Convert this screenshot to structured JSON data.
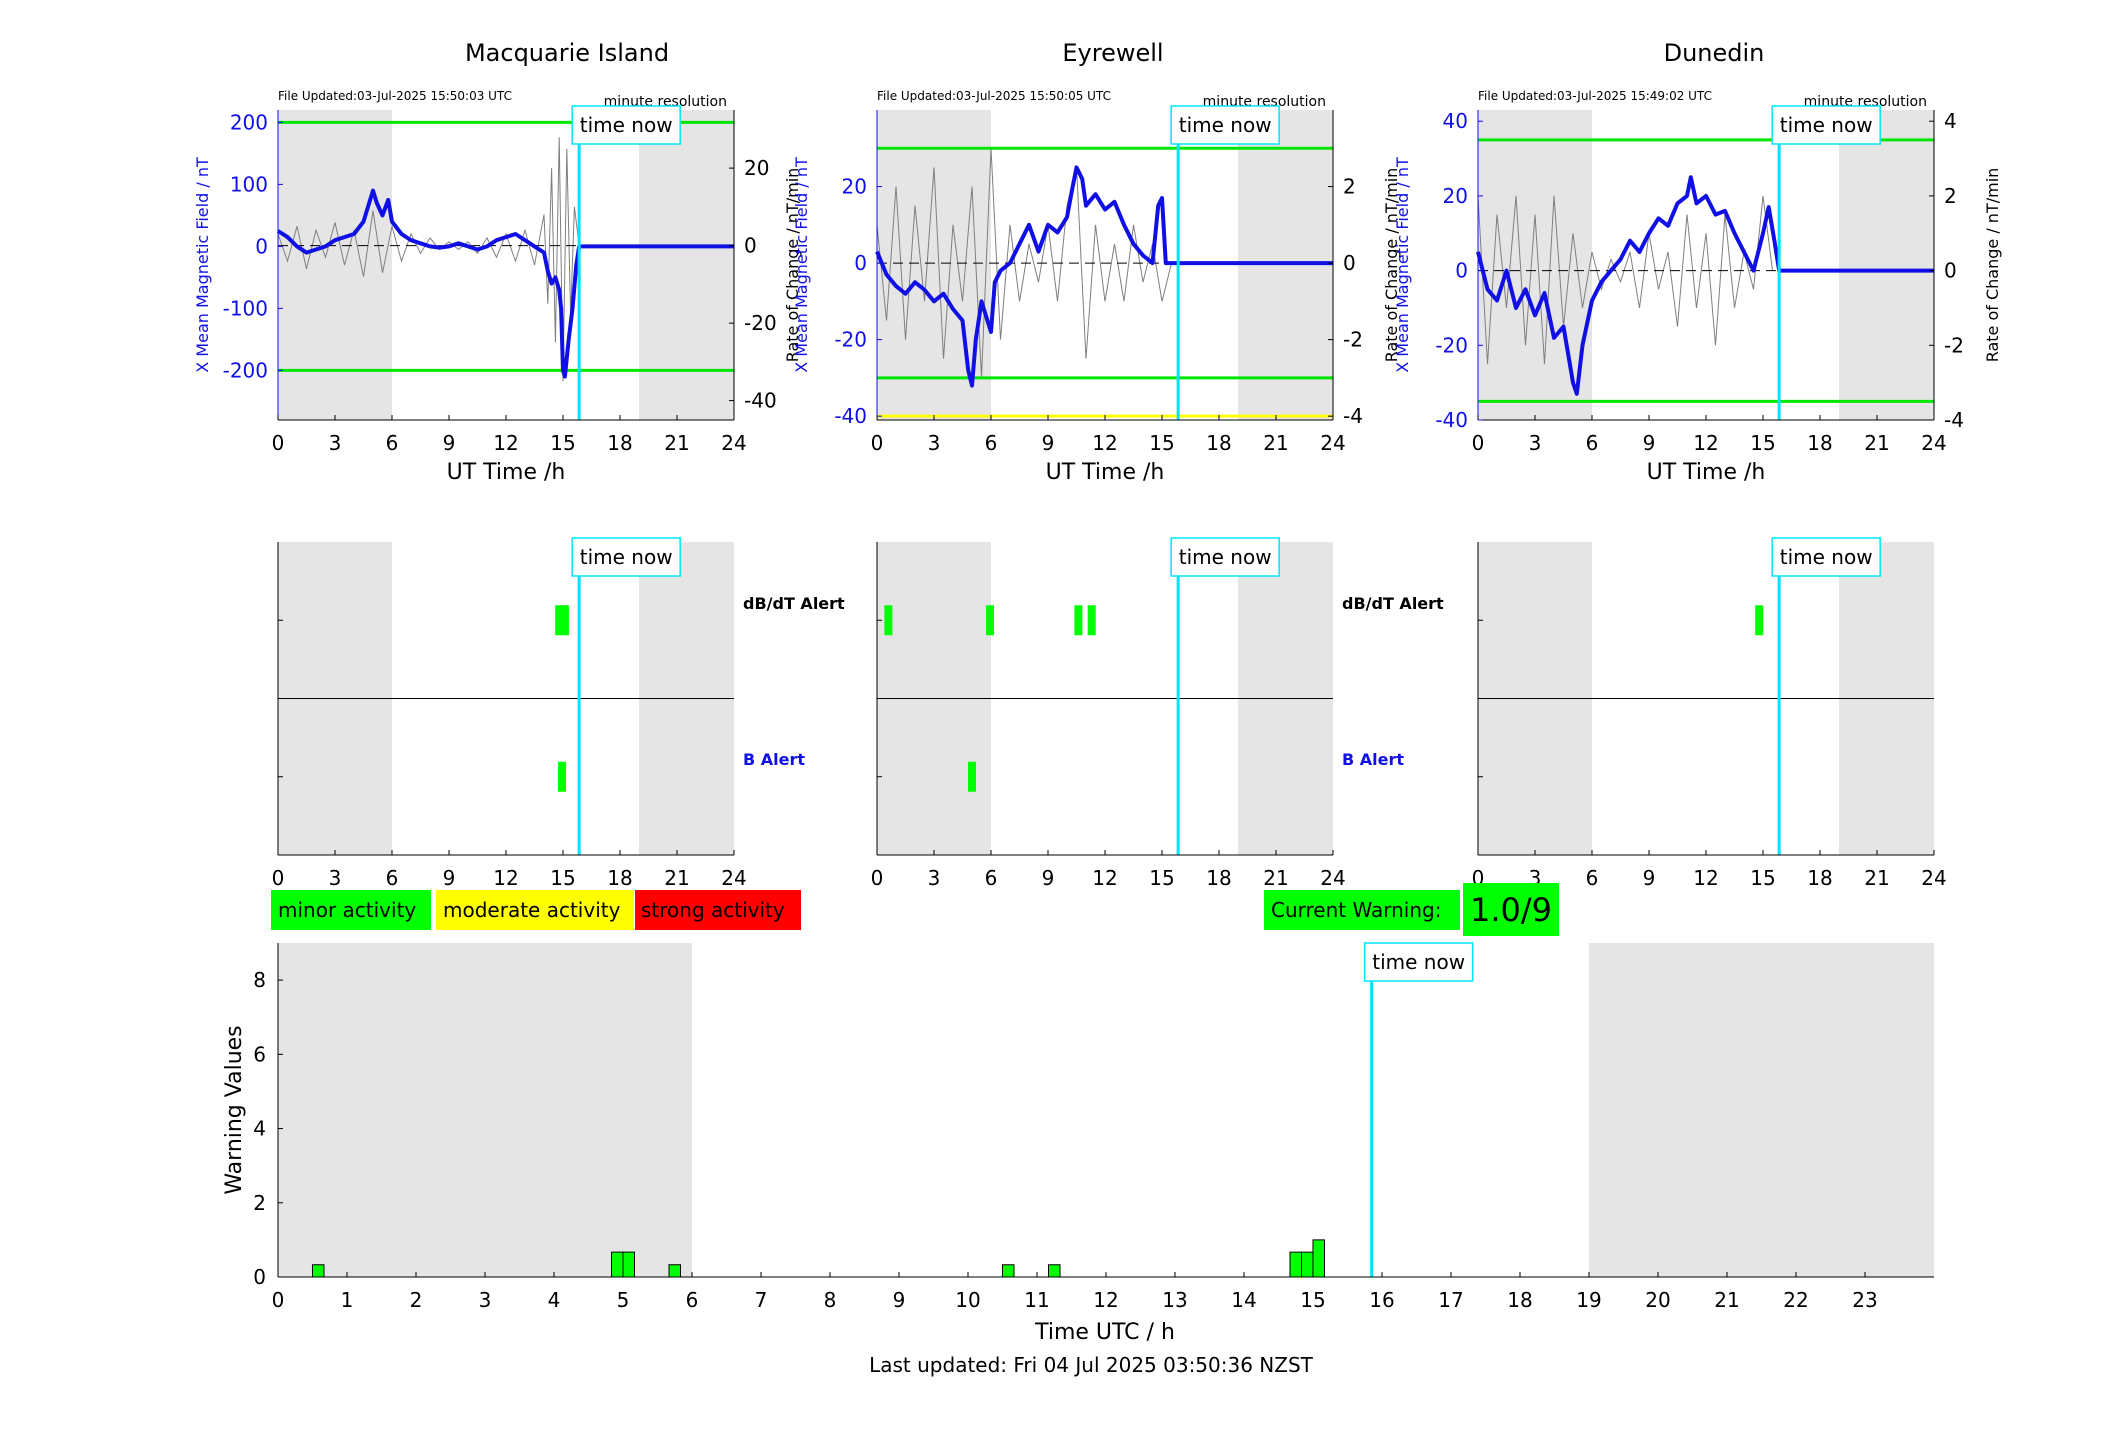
{
  "colors": {
    "night_shade": "#e5e5e5",
    "field_line": "#1010e6",
    "rate_line": "#7f7f7f",
    "threshold": "#00e600",
    "threshold_yellow": "#ffff00",
    "now_line": "#00e5ff",
    "minor": "#00ff00",
    "moderate": "#ffff00",
    "strong": "#ff0000"
  },
  "now_label": "time now",
  "stations": [
    {
      "title": "Macquarie Island",
      "file_updated": "File Updated:03-Jul-2025 15:50:03 UTC",
      "resolution": "minute resolution",
      "ylabel_left": "X Mean Magnetic Field / nT",
      "ylabel_right": "Rate of Change / nT/min"
    },
    {
      "title": "Eyrewell",
      "file_updated": "File Updated:03-Jul-2025 15:50:05 UTC",
      "resolution": "minute resolution",
      "ylabel_left": "X Mean Magnetic Field / nT",
      "ylabel_right": "Rate of Change / nT/min"
    },
    {
      "title": "Dunedin",
      "file_updated": "File Updated:03-Jul-2025 15:49:02 UTC",
      "resolution": "minute resolution",
      "ylabel_left": "X Mean Magnetic Field / nT",
      "ylabel_right": "Rate of Change / nT/min"
    }
  ],
  "alert_labels": {
    "dbdt": "dB/dT Alert",
    "b": "B Alert"
  },
  "legend": {
    "minor": "minor activity",
    "moderate": "moderate activity",
    "strong": "strong activity"
  },
  "current_warning": {
    "label": "Current Warning:",
    "value": "1.0/9"
  },
  "footer": "Last updated: Fri 04 Jul 2025 03:50:36 NZST",
  "chart_data": [
    {
      "type": "line",
      "title": "Macquarie Island",
      "xlabel": "UT Time /h",
      "ylabel": "X Mean Magnetic Field / nT",
      "ylabel_right": "Rate of Change / nT/min",
      "xlim": [
        0,
        24
      ],
      "xticks": [
        0,
        3,
        6,
        9,
        12,
        15,
        18,
        21,
        24
      ],
      "ylim": [
        -280,
        220
      ],
      "yticks": [
        -200,
        -100,
        0,
        100,
        200
      ],
      "ylim_right": [
        -45,
        35
      ],
      "yticks_right": [
        -40,
        -20,
        0,
        20
      ],
      "night_shade": [
        [
          0,
          6
        ],
        [
          19,
          24
        ]
      ],
      "now": 15.85,
      "thresholds": [
        200,
        -200
      ],
      "series": [
        {
          "x": [
            0,
            0.5,
            1,
            1.5,
            2,
            2.5,
            3,
            3.5,
            4,
            4.5,
            5,
            5.2,
            5.5,
            5.8,
            6,
            6.5,
            7,
            7.5,
            8,
            8.5,
            9,
            9.5,
            10,
            10.5,
            11,
            11.5,
            12,
            12.5,
            13,
            13.5,
            14,
            14.2,
            14.4,
            14.6,
            14.8,
            14.9,
            15,
            15.1,
            15.3,
            15.5,
            15.7,
            15.85,
            24
          ],
          "y": [
            25,
            15,
            0,
            -10,
            -5,
            0,
            10,
            15,
            20,
            40,
            90,
            70,
            50,
            75,
            40,
            20,
            10,
            5,
            0,
            -2,
            0,
            5,
            0,
            -5,
            0,
            10,
            15,
            20,
            10,
            0,
            -10,
            -40,
            -60,
            -50,
            -70,
            -100,
            -200,
            -210,
            -150,
            -100,
            -30,
            0,
            0
          ]
        },
        {
          "x": [
            0,
            0.5,
            1,
            1.5,
            2,
            2.5,
            3,
            3.5,
            4,
            4.5,
            5,
            5.5,
            6,
            6.5,
            7,
            7.5,
            8,
            8.5,
            9,
            9.5,
            10,
            10.5,
            11,
            11.5,
            12,
            12.5,
            13,
            13.5,
            14,
            14.2,
            14.4,
            14.6,
            14.8,
            15,
            15.2,
            15.4,
            15.6,
            15.85
          ],
          "y": [
            3,
            -4,
            5,
            -6,
            4,
            -3,
            6,
            -5,
            4,
            -8,
            9,
            -7,
            5,
            -4,
            3,
            -2,
            2,
            -1,
            1,
            -1,
            1,
            -2,
            2,
            -3,
            3,
            -4,
            4,
            -5,
            8,
            -15,
            20,
            -25,
            28,
            -35,
            25,
            -18,
            10,
            0
          ]
        }
      ]
    },
    {
      "type": "line",
      "title": "Eyrewell",
      "xlabel": "UT Time /h",
      "ylabel": "X Mean Magnetic Field / nT",
      "ylabel_right": "Rate of Change / nT/min",
      "xlim": [
        0,
        24
      ],
      "xticks": [
        0,
        3,
        6,
        9,
        12,
        15,
        18,
        21,
        24
      ],
      "ylim": [
        -41,
        40
      ],
      "yticks": [
        -40,
        -20,
        0,
        20
      ],
      "ylim_right": [
        -4.1,
        4.0
      ],
      "yticks_right": [
        -4,
        -2,
        0,
        2
      ],
      "night_shade": [
        [
          0,
          6
        ],
        [
          19,
          24
        ]
      ],
      "now": 15.85,
      "thresholds": [
        30,
        -30
      ],
      "threshold_yellow": -40,
      "series": [
        {
          "x": [
            0,
            0.5,
            1,
            1.5,
            2,
            2.5,
            3,
            3.5,
            4,
            4.5,
            4.8,
            5,
            5.2,
            5.5,
            6,
            6.2,
            6.5,
            7,
            7.5,
            8,
            8.5,
            9,
            9.5,
            10,
            10.3,
            10.5,
            10.8,
            11,
            11.5,
            12,
            12.5,
            13,
            13.5,
            14,
            14.5,
            14.8,
            15,
            15.2,
            15.4,
            15.85,
            24
          ],
          "y": [
            3,
            -3,
            -6,
            -8,
            -5,
            -7,
            -10,
            -8,
            -12,
            -15,
            -28,
            -32,
            -20,
            -10,
            -18,
            -5,
            -2,
            0,
            5,
            10,
            3,
            10,
            8,
            12,
            20,
            25,
            22,
            15,
            18,
            14,
            16,
            10,
            5,
            2,
            0,
            15,
            17,
            0,
            0,
            0,
            0
          ]
        },
        {
          "x": [
            0,
            0.5,
            1,
            1.5,
            2,
            2.5,
            3,
            3.5,
            4,
            4.5,
            5,
            5.5,
            6,
            6.5,
            7,
            7.5,
            8,
            8.5,
            9,
            9.5,
            10,
            10.5,
            11,
            11.5,
            12,
            12.5,
            13,
            13.5,
            14,
            14.5,
            15,
            15.5
          ],
          "y": [
            1,
            -1.5,
            2,
            -2,
            1.5,
            -1,
            2.5,
            -2.5,
            1,
            -1,
            2,
            -3,
            3,
            -2,
            1,
            -1,
            0.5,
            -0.5,
            1,
            -1,
            1.5,
            2.5,
            -2.5,
            1,
            -1,
            0.5,
            -1,
            1,
            -0.5,
            0.5,
            -1,
            0
          ]
        }
      ]
    },
    {
      "type": "line",
      "title": "Dunedin",
      "xlabel": "UT Time /h",
      "ylabel": "X Mean Magnetic Field / nT",
      "ylabel_right": "Rate of Change / nT/min",
      "xlim": [
        0,
        24
      ],
      "xticks": [
        0,
        3,
        6,
        9,
        12,
        15,
        18,
        21,
        24
      ],
      "ylim": [
        -40,
        43
      ],
      "yticks": [
        -40,
        -20,
        0,
        20,
        40
      ],
      "ylim_right": [
        -4.0,
        4.3
      ],
      "yticks_right": [
        -4,
        -2,
        0,
        2,
        4
      ],
      "night_shade": [
        [
          0,
          6
        ],
        [
          19,
          24
        ]
      ],
      "now": 15.85,
      "thresholds": [
        35,
        -35
      ],
      "series": [
        {
          "x": [
            0,
            0.5,
            1,
            1.5,
            2,
            2.5,
            3,
            3.5,
            4,
            4.5,
            5,
            5.2,
            5.5,
            6,
            6.5,
            7,
            7.5,
            8,
            8.5,
            9,
            9.5,
            10,
            10.5,
            11,
            11.2,
            11.5,
            12,
            12.5,
            13,
            13.5,
            14,
            14.5,
            15,
            15.3,
            15.6,
            15.85,
            24
          ],
          "y": [
            5,
            -5,
            -8,
            0,
            -10,
            -5,
            -12,
            -6,
            -18,
            -15,
            -30,
            -33,
            -20,
            -8,
            -3,
            0,
            3,
            8,
            5,
            10,
            14,
            12,
            18,
            20,
            25,
            18,
            20,
            15,
            16,
            10,
            5,
            0,
            10,
            17,
            8,
            0,
            0
          ]
        },
        {
          "x": [
            0,
            0.5,
            1,
            1.5,
            2,
            2.5,
            3,
            3.5,
            4,
            4.5,
            5,
            5.5,
            6,
            6.5,
            7,
            7.5,
            8,
            8.5,
            9,
            9.5,
            10,
            10.5,
            11,
            11.5,
            12,
            12.5,
            13,
            13.5,
            14,
            14.5,
            15,
            15.5
          ],
          "y": [
            2,
            -2.5,
            1.5,
            -1,
            2,
            -2,
            1.5,
            -2.5,
            2,
            -1.5,
            1,
            -1,
            0.5,
            -0.5,
            0.3,
            -0.3,
            0.5,
            -1,
            1,
            -0.5,
            0.5,
            -1.5,
            1.5,
            -1,
            1,
            -2,
            1.5,
            -1,
            0.5,
            -0.5,
            2,
            0
          ]
        }
      ]
    },
    {
      "type": "bar",
      "xlabel": "UT Time /h",
      "xlim": [
        0,
        24
      ],
      "xticks": [
        0,
        3,
        6,
        9,
        12,
        15,
        18,
        21,
        24
      ],
      "night_shade": [
        [
          0,
          6
        ],
        [
          19,
          24
        ]
      ],
      "now": 15.85,
      "series": [
        {
          "name": "dB/dT Alert",
          "x": [
            14.8,
            15.1
          ]
        },
        {
          "name": "B Alert",
          "x": [
            14.95
          ]
        }
      ]
    },
    {
      "type": "bar",
      "xlabel": "UT Time /h",
      "xlim": [
        0,
        24
      ],
      "xticks": [
        0,
        3,
        6,
        9,
        12,
        15,
        18,
        21,
        24
      ],
      "night_shade": [
        [
          0,
          6
        ],
        [
          19,
          24
        ]
      ],
      "now": 15.85,
      "series": [
        {
          "name": "dB/dT Alert",
          "x": [
            0.6,
            5.95,
            10.6,
            11.3
          ]
        },
        {
          "name": "B Alert",
          "x": [
            5.0
          ]
        }
      ]
    },
    {
      "type": "bar",
      "xlabel": "UT Time /h",
      "xlim": [
        0,
        24
      ],
      "xticks": [
        0,
        3,
        6,
        9,
        12,
        15,
        18,
        21,
        24
      ],
      "night_shade": [
        [
          0,
          6
        ],
        [
          19,
          24
        ]
      ],
      "now": 15.85,
      "series": [
        {
          "name": "dB/dT Alert",
          "x": [
            14.8
          ]
        },
        {
          "name": "B Alert",
          "x": []
        }
      ]
    },
    {
      "type": "bar",
      "xlabel": "Time UTC / h",
      "ylabel": "Warning Values",
      "xlim": [
        0,
        24
      ],
      "xticks": [
        0,
        1,
        2,
        3,
        4,
        5,
        6,
        7,
        8,
        9,
        10,
        11,
        12,
        13,
        14,
        15,
        16,
        17,
        18,
        19,
        20,
        21,
        22,
        23
      ],
      "ylim": [
        0,
        9
      ],
      "yticks": [
        0,
        2,
        4,
        6,
        8
      ],
      "night_shade": [
        [
          0,
          6
        ],
        [
          19,
          24
        ]
      ],
      "now": 15.85,
      "x": [
        0.583,
        4.917,
        5.083,
        5.75,
        10.583,
        11.25,
        14.75,
        14.917,
        15.083
      ],
      "values": [
        0.33,
        0.67,
        0.67,
        0.33,
        0.33,
        0.33,
        0.67,
        0.67,
        1.0
      ]
    }
  ]
}
